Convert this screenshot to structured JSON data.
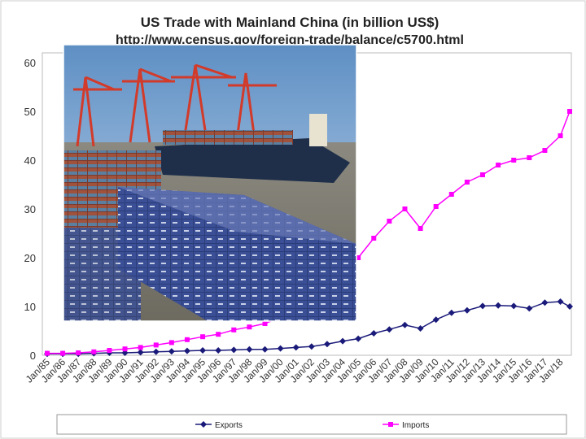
{
  "chart_data": {
    "type": "line",
    "title": "US Trade with Mainland China (in billion US$)",
    "subtitle": "http://www.census.gov/foreign-trade/balance/c5700.html",
    "xlabel": "",
    "ylabel": "",
    "ylim": [
      0,
      60
    ],
    "yticks": [
      0,
      10,
      20,
      30,
      40,
      50,
      60
    ],
    "x_tick_labels": [
      "Jan/85",
      "Jan/86",
      "Jan/87",
      "Jan/88",
      "Jan/89",
      "Jan/90",
      "Jan/91",
      "Jan/92",
      "Jan/93",
      "Jan/94",
      "Jan/95",
      "Jan/96",
      "Jan/97",
      "Jan/98",
      "Jan/99",
      "Jan/00",
      "Jan/01",
      "Jan/02",
      "Jan/03",
      "Jan/04",
      "Jan/05",
      "Jan/06",
      "Jan/07",
      "Jan/08",
      "Jan/09",
      "Jan/10",
      "Jan/11",
      "Jan/12",
      "Jan/13",
      "Jan/14",
      "Jan/15",
      "Jan/16",
      "Jan/17",
      "Jan/18"
    ],
    "x": [
      1985,
      1986,
      1987,
      1988,
      1989,
      1990,
      1991,
      1992,
      1993,
      1994,
      1995,
      1996,
      1997,
      1998,
      1999,
      2000,
      2001,
      2002,
      2003,
      2004,
      2005,
      2006,
      2007,
      2008,
      2009,
      2010,
      2011,
      2012,
      2013,
      2014,
      2015,
      2016,
      2017,
      2018,
      2018.6
    ],
    "series": [
      {
        "name": "Exports",
        "color": "#1a1a7a",
        "marker": "diamond",
        "values": [
          0.3,
          0.3,
          0.3,
          0.4,
          0.5,
          0.5,
          0.6,
          0.7,
          0.8,
          0.9,
          1.0,
          1.0,
          1.1,
          1.2,
          1.2,
          1.4,
          1.6,
          1.8,
          2.3,
          2.9,
          3.4,
          4.5,
          5.3,
          6.2,
          5.5,
          7.3,
          8.7,
          9.2,
          10.1,
          10.2,
          10.1,
          9.6,
          10.8,
          11.0,
          10.0
        ]
      },
      {
        "name": "Imports",
        "color": "#ff00ff",
        "marker": "square",
        "values": [
          0.4,
          0.4,
          0.5,
          0.7,
          1.0,
          1.3,
          1.6,
          2.1,
          2.6,
          3.2,
          3.8,
          4.3,
          5.2,
          5.8,
          6.5,
          7.8,
          8.5,
          10.0,
          12.5,
          15.5,
          20.0,
          24.0,
          27.5,
          30.0,
          26.0,
          30.5,
          33.0,
          35.5,
          37.0,
          39.0,
          40.0,
          40.5,
          42.0,
          45.0,
          50.0
        ]
      }
    ],
    "legend": {
      "position": "bottom",
      "entries": [
        "Exports",
        "Imports"
      ]
    },
    "grid": false
  },
  "photo": {
    "subject": "container-port-photo-overlay"
  }
}
